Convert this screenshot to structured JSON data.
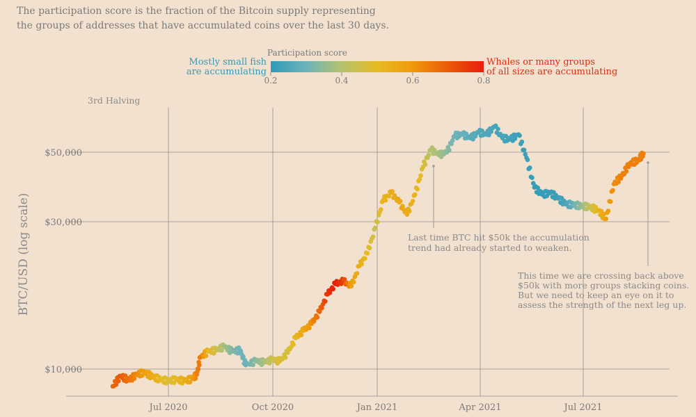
{
  "subtitle": [
    "The participation score is the fraction of the Bitcoin supply representing",
    "the groups of addresses that have accumulated coins over the last 30 days."
  ],
  "legend": {
    "title": "Participation score",
    "left_label": [
      "Mostly small fish",
      "are accumulating"
    ],
    "right_label": [
      "Whales or many groups",
      "of all sizes are accumulating"
    ],
    "ticks": [
      "0.2",
      "0.4",
      "0.6",
      "0.8"
    ],
    "colors": [
      "#2f9bb8",
      "#6db3ba",
      "#b4c26f",
      "#e6bb23",
      "#ef9a0c",
      "#ea5a08",
      "#e71d0b"
    ]
  },
  "annotations": {
    "halving": "3rd Halving",
    "last_time": [
      "Last time BTC hit $50k the accumulation",
      "trend had already started to weaken."
    ],
    "this_time": [
      "This time we are crossing back above",
      "$50k with more groups stacking coins.",
      "But we need to keep an eye on it to",
      "assess the strength of the next leg up."
    ]
  },
  "chart_data": {
    "type": "scatter",
    "title": "",
    "xlabel": "",
    "ylabel": "BTC/USD (log scale)",
    "y_scale": "log",
    "x_ticks": [
      "Jul 2020",
      "Oct 2020",
      "Jan 2021",
      "Apr 2021",
      "Jul 2021"
    ],
    "y_ticks": [
      "$10,000",
      "$30,000",
      "$50,000"
    ],
    "color_by": "participation score",
    "series": [
      {
        "points": [
          [
            "2020-05-13",
            8800,
            0.68
          ],
          [
            "2020-05-20",
            9500,
            0.7
          ],
          [
            "2020-05-27",
            9200,
            0.66
          ],
          [
            "2020-06-03",
            9600,
            0.63
          ],
          [
            "2020-06-10",
            9750,
            0.58
          ],
          [
            "2020-06-17",
            9450,
            0.55
          ],
          [
            "2020-06-24",
            9250,
            0.5
          ],
          [
            "2020-07-01",
            9150,
            0.48
          ],
          [
            "2020-07-08",
            9250,
            0.5
          ],
          [
            "2020-07-15",
            9150,
            0.54
          ],
          [
            "2020-07-22",
            9300,
            0.58
          ],
          [
            "2020-07-26",
            9600,
            0.64
          ],
          [
            "2020-07-29",
            10900,
            0.66
          ],
          [
            "2020-08-05",
            11400,
            0.52
          ],
          [
            "2020-08-12",
            11500,
            0.45
          ],
          [
            "2020-08-19",
            11800,
            0.38
          ],
          [
            "2020-08-26",
            11400,
            0.33
          ],
          [
            "2020-09-02",
            11500,
            0.3
          ],
          [
            "2020-09-07",
            10300,
            0.3
          ],
          [
            "2020-09-16",
            10600,
            0.34
          ],
          [
            "2020-09-23",
            10500,
            0.38
          ],
          [
            "2020-09-30",
            10700,
            0.44
          ],
          [
            "2020-10-07",
            10600,
            0.48
          ],
          [
            "2020-10-14",
            11300,
            0.46
          ],
          [
            "2020-10-21",
            12600,
            0.52
          ],
          [
            "2020-10-28",
            13300,
            0.56
          ],
          [
            "2020-11-04",
            14000,
            0.62
          ],
          [
            "2020-11-11",
            15300,
            0.68
          ],
          [
            "2020-11-18",
            17400,
            0.76
          ],
          [
            "2020-11-25",
            18800,
            0.8
          ],
          [
            "2020-12-02",
            19200,
            0.74
          ],
          [
            "2020-12-09",
            18500,
            0.58
          ],
          [
            "2020-12-16",
            21500,
            0.54
          ],
          [
            "2020-12-23",
            23600,
            0.5
          ],
          [
            "2020-12-30",
            28500,
            0.44
          ],
          [
            "2021-01-06",
            35000,
            0.52
          ],
          [
            "2021-01-13",
            37000,
            0.54
          ],
          [
            "2021-01-20",
            34500,
            0.56
          ],
          [
            "2021-01-27",
            31500,
            0.55
          ],
          [
            "2021-02-03",
            36500,
            0.52
          ],
          [
            "2021-02-10",
            44800,
            0.48
          ],
          [
            "2021-02-17",
            51000,
            0.4
          ],
          [
            "2021-02-24",
            49000,
            0.38
          ],
          [
            "2021-03-03",
            50000,
            0.34
          ],
          [
            "2021-03-10",
            56500,
            0.3
          ],
          [
            "2021-03-17",
            57000,
            0.29
          ],
          [
            "2021-03-24",
            55500,
            0.27
          ],
          [
            "2021-03-31",
            58000,
            0.26
          ],
          [
            "2021-04-07",
            57000,
            0.25
          ],
          [
            "2021-04-14",
            60500,
            0.24
          ],
          [
            "2021-04-21",
            55500,
            0.24
          ],
          [
            "2021-04-28",
            55000,
            0.23
          ],
          [
            "2021-05-05",
            57000,
            0.22
          ],
          [
            "2021-05-12",
            48000,
            0.22
          ],
          [
            "2021-05-19",
            38500,
            0.21
          ],
          [
            "2021-05-26",
            36500,
            0.21
          ],
          [
            "2021-06-02",
            37000,
            0.21
          ],
          [
            "2021-06-09",
            35500,
            0.22
          ],
          [
            "2021-06-16",
            34000,
            0.24
          ],
          [
            "2021-06-23",
            33800,
            0.3
          ],
          [
            "2021-06-30",
            33500,
            0.36
          ],
          [
            "2021-07-07",
            33300,
            0.44
          ],
          [
            "2021-07-14",
            32500,
            0.52
          ],
          [
            "2021-07-21",
            30500,
            0.58
          ],
          [
            "2021-07-28",
            39500,
            0.62
          ],
          [
            "2021-08-04",
            42000,
            0.64
          ],
          [
            "2021-08-11",
            46000,
            0.64
          ],
          [
            "2021-08-18",
            47000,
            0.64
          ],
          [
            "2021-08-23",
            49500,
            0.64
          ]
        ]
      }
    ]
  }
}
